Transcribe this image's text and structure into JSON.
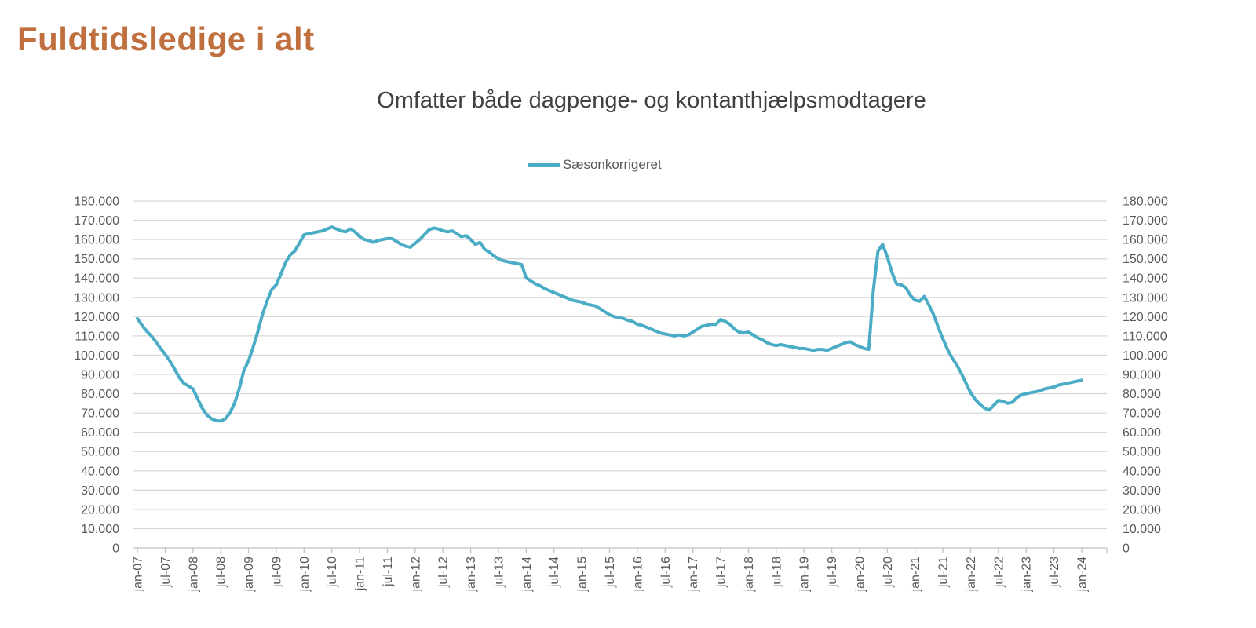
{
  "page": {
    "title": "Fuldtidsledige i alt"
  },
  "chart": {
    "subtitle": "Omfatter både dagpenge- og kontanthjælpsmodtagere",
    "legend_label": "Sæsonkorrigeret"
  },
  "colors": {
    "title": "#C0703E",
    "subtitle": "#404040",
    "axis_text": "#595959",
    "gridline": "#D9D9D9",
    "axis_line": "#C2C2C2",
    "series": "#4BACC6"
  },
  "chart_data": {
    "type": "line",
    "title": "Omfatter både dagpenge- og kontanthjælpsmodtagere",
    "legend_position": "top",
    "grid": "horizontal",
    "ylim": [
      0,
      180000
    ],
    "y_tick_interval": 10000,
    "y_tick_labels": [
      "0",
      "10.000",
      "20.000",
      "30.000",
      "40.000",
      "50.000",
      "60.000",
      "70.000",
      "80.000",
      "90.000",
      "100.000",
      "110.000",
      "120.000",
      "130.000",
      "140.000",
      "150.000",
      "160.000",
      "170.000",
      "180.000"
    ],
    "y_axis_sides": [
      "left",
      "right"
    ],
    "x_tick_labels": [
      "jan-07",
      "jul-07",
      "jan-08",
      "jul-08",
      "jan-09",
      "jul-09",
      "jan-10",
      "jul-10",
      "jan-11",
      "jul-11",
      "jan-12",
      "jul-12",
      "jan-13",
      "jul-13",
      "jan-14",
      "jul-14",
      "jan-15",
      "jul-15",
      "jan-16",
      "jul-16",
      "jan-17",
      "jul-17",
      "jan-18",
      "jul-18",
      "jan-19",
      "jul-19",
      "jan-20",
      "jul-20",
      "jan-21",
      "jul-21",
      "jan-22",
      "jul-22",
      "jan-23",
      "jul-23",
      "jan-24"
    ],
    "x_points_per_tick": 6,
    "series": [
      {
        "name": "Sæsonkorrigeret",
        "color": "#4BACC6",
        "start": "jan-07",
        "end": "jan-24",
        "frequency": "monthly",
        "values": [
          119000,
          115500,
          112500,
          110000,
          107000,
          103500,
          100500,
          97000,
          93000,
          88500,
          85500,
          84000,
          82500,
          77500,
          72500,
          69000,
          67000,
          66000,
          65800,
          67000,
          70000,
          75000,
          82500,
          92000,
          97000,
          104000,
          112000,
          121000,
          128000,
          134000,
          136500,
          142000,
          148000,
          152000,
          154000,
          158000,
          162500,
          163000,
          163500,
          164000,
          164500,
          165500,
          166500,
          165500,
          164500,
          164000,
          165500,
          164000,
          161500,
          160000,
          159500,
          158500,
          159500,
          160000,
          160500,
          160500,
          159000,
          157500,
          156500,
          156000,
          158000,
          160000,
          162500,
          165000,
          166000,
          165500,
          164500,
          164000,
          164500,
          163000,
          161500,
          162000,
          160000,
          157500,
          158500,
          155000,
          153500,
          151500,
          150000,
          149000,
          148500,
          148000,
          147500,
          147000,
          140000,
          138500,
          137000,
          136000,
          134500,
          133500,
          132500,
          131500,
          130500,
          129500,
          128500,
          128000,
          127500,
          126500,
          126000,
          125500,
          124000,
          122500,
          121000,
          120000,
          119500,
          119000,
          118000,
          117500,
          116000,
          115500,
          114500,
          113500,
          112500,
          111500,
          111000,
          110500,
          110000,
          110500,
          110000,
          110500,
          112000,
          113500,
          115000,
          115500,
          116000,
          116000,
          118500,
          117500,
          116000,
          113500,
          112000,
          111500,
          112000,
          110500,
          109000,
          108000,
          106500,
          105500,
          105000,
          105500,
          105000,
          104500,
          104000,
          103500,
          103500,
          103000,
          102500,
          103000,
          103000,
          102500,
          103500,
          104500,
          105500,
          106500,
          107000,
          105500,
          104500,
          103500,
          103000,
          134000,
          154000,
          157500,
          151000,
          143000,
          137000,
          136500,
          135000,
          131000,
          128500,
          128000,
          130500,
          126000,
          121000,
          114500,
          108500,
          103000,
          98500,
          95000,
          90500,
          85500,
          80500,
          77000,
          74500,
          72500,
          71500,
          74000,
          76500,
          76000,
          75000,
          75500,
          78000,
          79500,
          80000,
          80500,
          81000,
          81500,
          82500,
          83000,
          83500,
          84500,
          85000,
          85500,
          86000,
          86500,
          87000
        ]
      }
    ]
  }
}
